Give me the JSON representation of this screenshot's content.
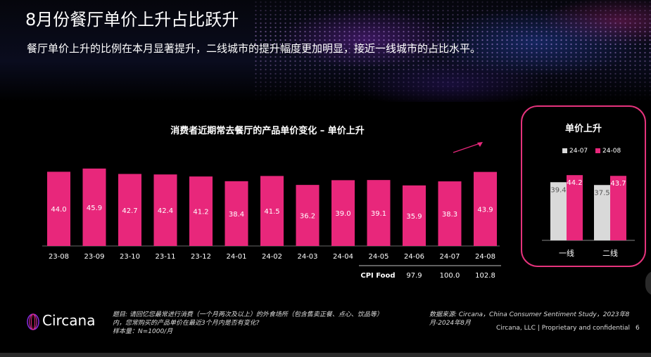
{
  "header": {
    "title": "8月份餐厅单价上升占比跃升",
    "subtitle": "餐厅单价上升的比例在本月显著提升，二线城市的提升幅度更加明显，接近一线城市的占比水平。"
  },
  "colors": {
    "accent": "#e8277b",
    "gray": "#d9d9d9",
    "background": "#000000"
  },
  "chart_data": [
    {
      "type": "bar",
      "title": "消费者近期常去餐厅的产品单价变化 – 单价上升",
      "categories": [
        "23-08",
        "23-09",
        "23-10",
        "23-11",
        "23-12",
        "24-01",
        "24-02",
        "24-03",
        "24-04",
        "24-05",
        "24-06",
        "24-07",
        "24-08"
      ],
      "values": [
        44.0,
        45.9,
        42.7,
        42.4,
        41.2,
        38.4,
        41.5,
        36.2,
        39.0,
        39.1,
        35.9,
        38.3,
        43.9
      ],
      "value_labels": [
        "44.0",
        "45.9",
        "42.7",
        "42.4",
        "41.2",
        "38.4",
        "41.5",
        "36.2",
        "39.0",
        "39.1",
        "35.9",
        "38.3",
        "43.9"
      ],
      "color": "#e8277b",
      "table": {
        "row_label": "CPI Food",
        "columns": [
          "24-06",
          "24-07",
          "24-08"
        ],
        "values": [
          "97.9",
          "100.0",
          "102.8"
        ]
      }
    },
    {
      "type": "bar",
      "title": "单价上升",
      "categories": [
        "一线",
        "二线"
      ],
      "series": [
        {
          "name": "24-07",
          "color": "#d9d9d9",
          "values": [
            39.4,
            37.5
          ],
          "labels": [
            "39.4",
            "37.5"
          ]
        },
        {
          "name": "24-08",
          "color": "#e8277b",
          "values": [
            44.2,
            43.7
          ],
          "labels": [
            "44.2",
            "43.7"
          ]
        }
      ]
    }
  ],
  "footer": {
    "brand": "Circana",
    "note_lines": [
      "题目: 请回忆您最常进行消费（一个月两次及以上）的外食场所（包含售卖正餐、点心、饮品等）",
      "内，您常购买的产品单价在最近3个月内是否有变化?",
      "样本量：N=1000/月"
    ],
    "source": "数据来源: Circana，China Consumer Sentiment Study，2023年8月-2024年8月",
    "copyright": "Circana, LLC  |  Proprietary and confidential",
    "page_number": "6"
  }
}
